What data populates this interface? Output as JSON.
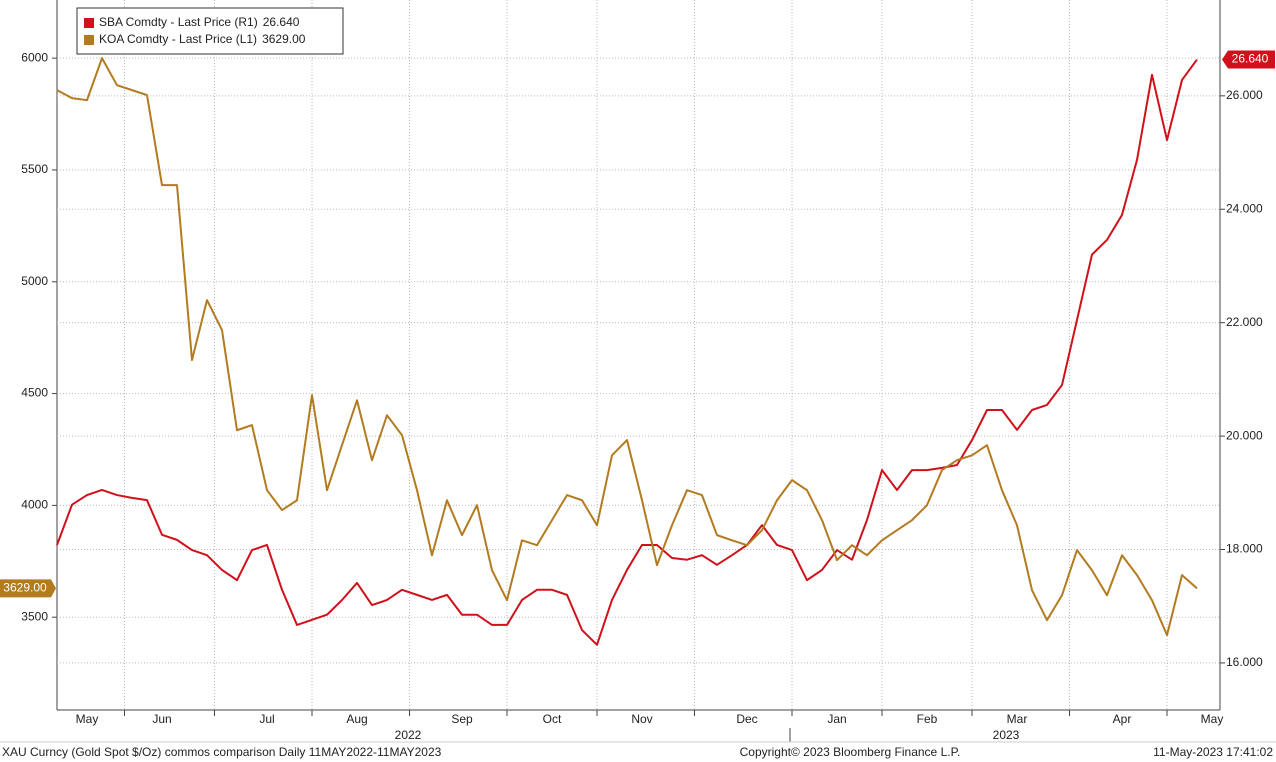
{
  "chart_data": {
    "type": "line",
    "categories": [
      null,
      null,
      "May",
      null,
      null,
      null,
      null,
      "Jun",
      null,
      null,
      null,
      null,
      null,
      null,
      "Jul",
      null,
      null,
      null,
      null,
      null,
      "Aug",
      null,
      null,
      null,
      null,
      null,
      null,
      "Sep",
      null,
      null,
      null,
      null,
      null,
      "Oct",
      null,
      null,
      null,
      null,
      null,
      "Nov",
      null,
      null,
      null,
      null,
      null,
      null,
      "Dec",
      null,
      null,
      null,
      null,
      null,
      "Jan",
      null,
      null,
      null,
      null,
      null,
      "Feb",
      null,
      null,
      null,
      null,
      null,
      "Mar",
      null,
      null,
      null,
      null,
      null,
      null,
      "Apr",
      null,
      null,
      null,
      null,
      null,
      "May"
    ],
    "year_labels": [
      "2022",
      "2023"
    ],
    "series": [
      {
        "name": "SBA Comdty - Last Price (R1)",
        "color": "#d0111b",
        "axis": "y2",
        "last_value_label": "26.640",
        "values": [
          18.08,
          18.79,
          18.96,
          19.05,
          18.96,
          18.91,
          18.87,
          18.26,
          18.17,
          17.99,
          17.9,
          17.64,
          17.46,
          17.99,
          18.08,
          17.29,
          16.67,
          16.76,
          16.85,
          17.11,
          17.41,
          17.02,
          17.11,
          17.29,
          17.2,
          17.11,
          17.2,
          16.85,
          16.85,
          16.67,
          16.67,
          17.11,
          17.29,
          17.29,
          17.2,
          16.58,
          16.32,
          17.11,
          17.64,
          18.08,
          18.08,
          17.85,
          17.82,
          17.9,
          17.73,
          17.9,
          18.08,
          18.43,
          18.08,
          17.99,
          17.46,
          17.64,
          17.99,
          17.82,
          18.52,
          19.4,
          19.05,
          19.4,
          19.4,
          19.44,
          19.49,
          19.93,
          20.46,
          20.46,
          20.11,
          20.46,
          20.55,
          20.9,
          22.05,
          23.2,
          23.46,
          23.9,
          24.87,
          26.37,
          25.22,
          26.28,
          26.64,
          null
        ]
      },
      {
        "name": "KOA Comdty - Last Price (L1)",
        "color": "#b27b20",
        "axis": "y",
        "last_value_label": "3629.00",
        "values": [
          5857,
          5821,
          5812,
          6000,
          5879,
          5857,
          5835,
          5432,
          5432,
          4650,
          4918,
          4784,
          4336,
          4359,
          4068,
          3979,
          4023,
          4493,
          4068,
          4269,
          4470,
          4202,
          4403,
          4314,
          4068,
          3777,
          4023,
          3867,
          4001,
          3710,
          3576,
          3844,
          3822,
          3934,
          4046,
          4023,
          3911,
          4224,
          4292,
          4023,
          3733,
          3911,
          4068,
          4046,
          3867,
          3844,
          3822,
          3889,
          4023,
          4113,
          4068,
          3934,
          3755,
          3822,
          3777,
          3844,
          3889,
          3934,
          4001,
          4158,
          4202,
          4224,
          4269,
          4068,
          3911,
          3621,
          3487,
          3598,
          3800,
          3710,
          3598,
          3777,
          3688,
          3576,
          3420,
          3688,
          3629,
          null
        ]
      }
    ],
    "ylim": [
      3085,
      6260
    ],
    "yticks": [
      3500,
      4000,
      4500,
      5000,
      5500,
      6000
    ],
    "y2lim": [
      15.17,
      27.69
    ],
    "y2ticks": [
      {
        "value": 16,
        "label": "16.000"
      },
      {
        "value": 18,
        "label": "18.000"
      },
      {
        "value": 20,
        "label": "20.000"
      },
      {
        "value": 22,
        "label": "22.000"
      },
      {
        "value": 24,
        "label": "24.000"
      },
      {
        "value": 26,
        "label": "26.000"
      }
    ],
    "grid": true,
    "footer": {
      "left": "XAU Curncy (Gold Spot  $/Oz) commos comparison  Daily 11MAY2022-11MAY2023",
      "center": "Copyright© 2023 Bloomberg Finance L.P.",
      "right": "11-May-2023 17:41:02"
    }
  }
}
